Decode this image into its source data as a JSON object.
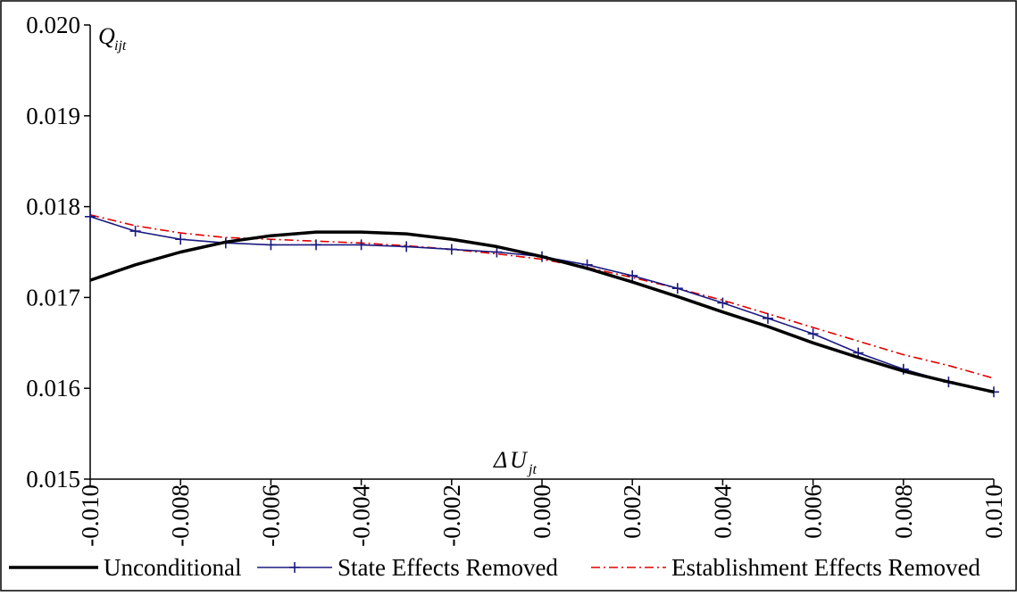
{
  "chart_data": {
    "type": "line",
    "title": "",
    "ylabel": {
      "main": "Q",
      "sub": "ijt"
    },
    "xlabel": {
      "delta": "Δ",
      "main": "U",
      "sub": "jt"
    },
    "xlim": [
      -0.01,
      0.01
    ],
    "ylim": [
      0.015,
      0.02
    ],
    "x_ticks": [
      "-0.010",
      "-0.008",
      "-0.006",
      "-0.004",
      "-0.002",
      "0.000",
      "0.002",
      "0.004",
      "0.006",
      "0.008",
      "0.010"
    ],
    "y_ticks": [
      "0.015",
      "0.016",
      "0.017",
      "0.018",
      "0.019",
      "0.020"
    ],
    "x": [
      -0.01,
      -0.009,
      -0.008,
      -0.007,
      -0.006,
      -0.005,
      -0.004,
      -0.003,
      -0.002,
      -0.001,
      0.0,
      0.001,
      0.002,
      0.003,
      0.004,
      0.005,
      0.006,
      0.007,
      0.008,
      0.009,
      0.01
    ],
    "grid": false,
    "legend_position": "bottom",
    "series": [
      {
        "name": "Unconditional",
        "color": "#000000",
        "style": "solid-thick",
        "values": [
          0.01719,
          0.01736,
          0.0175,
          0.01761,
          0.01768,
          0.01772,
          0.01772,
          0.0177,
          0.01764,
          0.01756,
          0.01745,
          0.01732,
          0.01717,
          0.01701,
          0.01684,
          0.01668,
          0.0165,
          0.01634,
          0.01619,
          0.01607,
          0.01596
        ]
      },
      {
        "name": "State Effects Removed",
        "color": "#1a1a80",
        "style": "solid-plus-markers",
        "values": [
          0.01789,
          0.01773,
          0.01764,
          0.0176,
          0.01758,
          0.01758,
          0.01758,
          0.01756,
          0.01753,
          0.0175,
          0.01745,
          0.01736,
          0.01724,
          0.0171,
          0.01694,
          0.01677,
          0.0166,
          0.01639,
          0.01621,
          0.01607,
          0.01596
        ]
      },
      {
        "name": "Establishment Effects Removed",
        "color": "#e00000",
        "style": "dash-dot",
        "values": [
          0.01791,
          0.01779,
          0.01771,
          0.01766,
          0.01764,
          0.01762,
          0.0176,
          0.01757,
          0.01753,
          0.01748,
          0.01742,
          0.01733,
          0.01722,
          0.0171,
          0.01697,
          0.01682,
          0.01667,
          0.01652,
          0.01637,
          0.01625,
          0.01611
        ]
      }
    ]
  }
}
